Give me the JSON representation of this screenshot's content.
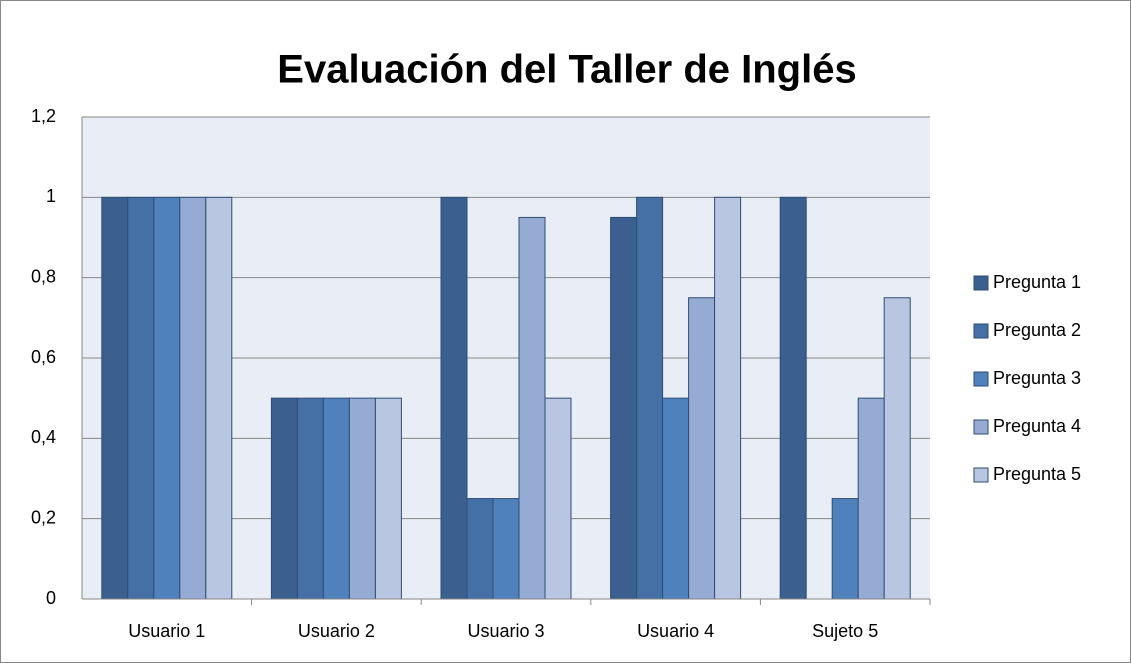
{
  "chart_data": {
    "type": "bar",
    "title": "Evaluación del Taller de Inglés",
    "categories": [
      "Usuario 1",
      "Usuario 2",
      "Usuario 3",
      "Usuario 4",
      "Sujeto 5"
    ],
    "series": [
      {
        "name": "Pregunta 1",
        "color": "#3b5f8f",
        "values": [
          1,
          0.5,
          1,
          0.95,
          1
        ]
      },
      {
        "name": "Pregunta 2",
        "color": "#4470a6",
        "values": [
          1,
          0.5,
          0.25,
          1,
          0
        ]
      },
      {
        "name": "Pregunta 3",
        "color": "#4f81bd",
        "values": [
          1,
          0.5,
          0.25,
          0.5,
          0.25
        ]
      },
      {
        "name": "Pregunta 4",
        "color": "#95abd4",
        "values": [
          1,
          0.5,
          0.95,
          0.75,
          0.5
        ]
      },
      {
        "name": "Pregunta 5",
        "color": "#b9c6e1",
        "values": [
          1,
          0.5,
          0.5,
          1,
          0.75
        ]
      }
    ],
    "ylim": [
      0,
      1.2
    ],
    "yticks": [
      0,
      {
        "value": 0.2,
        "label": "0,2"
      },
      {
        "value": 0.4,
        "label": "0,4"
      },
      {
        "value": 0.6,
        "label": "0,6"
      },
      {
        "value": 0.8,
        "label": "0,8"
      },
      1,
      {
        "value": 1.2,
        "label": "1,2"
      }
    ],
    "grid": true,
    "legend": "right"
  }
}
